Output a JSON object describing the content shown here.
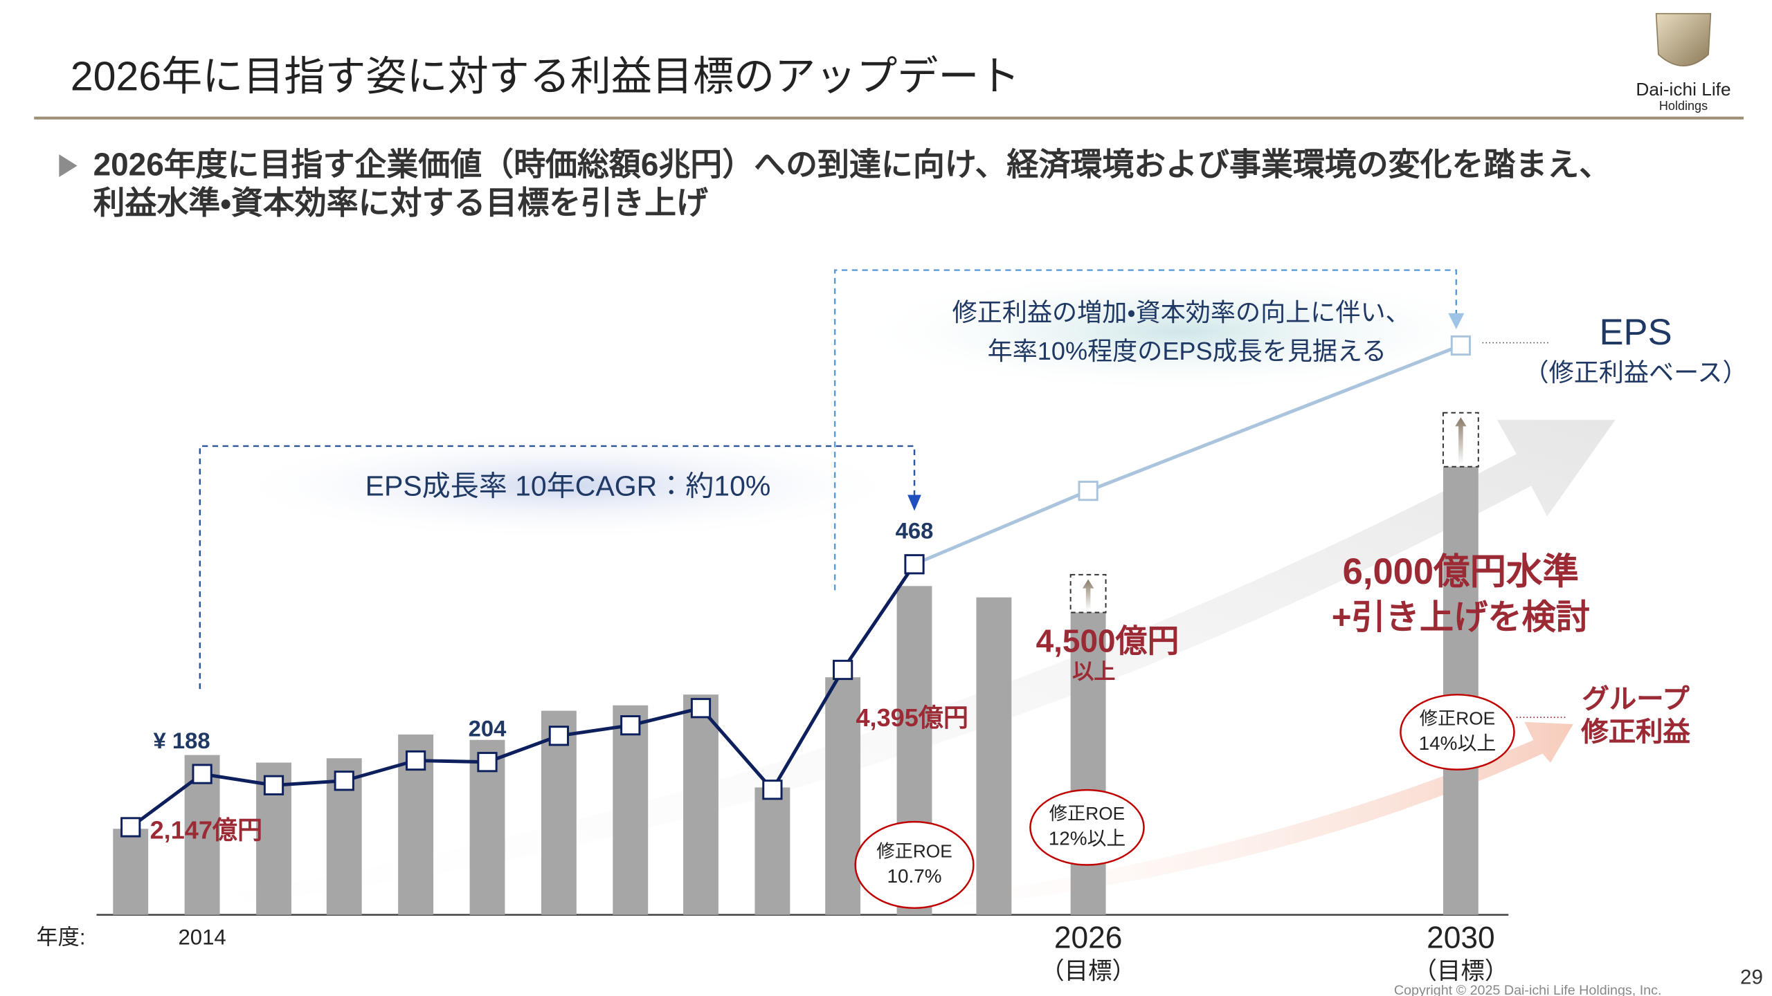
{
  "header": {
    "title": "2026年に目指す姿に対する利益目標のアップデート",
    "logo": [
      "Dai-ichi Life",
      "Holdings"
    ]
  },
  "bullet": [
    "2026年度に目指す企業価値（時価総額6兆円）への到達に向け、経済環境および事業環境の変化を踏まえ、",
    "利益水準・資本効率に対する目標を引き上げ"
  ],
  "chart_data": {
    "type": "combo",
    "x_label": "年度:",
    "categories": [
      null,
      "2014",
      null,
      null,
      null,
      null,
      null,
      null,
      null,
      null,
      null,
      null,
      null,
      "2026",
      "2030"
    ],
    "category_notes": [
      null,
      null,
      null,
      null,
      null,
      null,
      null,
      null,
      null,
      null,
      null,
      null,
      null,
      "（目標）",
      "（目標）"
    ],
    "ylim": [
      1350,
      6900
    ],
    "y2lim": [
      0,
      800
    ],
    "series": [
      {
        "name": "グループ修正利益",
        "color": "#a6a6a6",
        "values": [
          2147,
          2830,
          2760,
          2800,
          3020,
          2970,
          3240,
          3290,
          3390,
          2530,
          3550,
          4395,
          4290,
          4150,
          5500
        ],
        "value_labels": [
          "2,147億円",
          null,
          null,
          null,
          null,
          null,
          null,
          null,
          null,
          null,
          null,
          "4,395億円",
          null,
          null,
          null
        ]
      },
      {
        "name": "EPS",
        "color": "#0d1f5c",
        "axis": "y2",
        "values": [
          117,
          188,
          173,
          179,
          206,
          204,
          239,
          253,
          276,
          167,
          327,
          468,
          null,
          null,
          null
        ],
        "value_labels": [
          null,
          "¥ 188",
          null,
          null,
          null,
          "204",
          null,
          null,
          null,
          null,
          null,
          "468",
          null,
          null,
          null
        ]
      },
      {
        "color": "#a9c4dc",
        "axis": "y2",
        "connect_nulls": true,
        "values": [
          null,
          null,
          null,
          null,
          null,
          null,
          null,
          null,
          null,
          null,
          null,
          468,
          null,
          566,
          760
        ]
      }
    ],
    "targets": {
      "color": "#9b2a35",
      "values": [
        null,
        null,
        null,
        null,
        null,
        null,
        null,
        null,
        null,
        null,
        null,
        null,
        null,
        4500,
        6000
      ],
      "value_labels": [
        null,
        null,
        null,
        null,
        null,
        null,
        null,
        null,
        null,
        null,
        null,
        null,
        null,
        "4,500億円",
        "6,000億円水準"
      ],
      "notes": [
        null,
        null,
        null,
        null,
        null,
        null,
        null,
        null,
        null,
        null,
        null,
        null,
        null,
        "以上",
        "+引き上げを検討"
      ]
    },
    "roe": {
      "label": "修正ROE",
      "values": [
        null,
        null,
        null,
        null,
        null,
        null,
        null,
        null,
        null,
        null,
        null,
        10.7,
        null,
        12,
        14
      ],
      "value_labels": [
        null,
        null,
        null,
        null,
        null,
        null,
        null,
        null,
        null,
        null,
        null,
        "10.7%",
        null,
        "12%以上",
        "14%以上"
      ]
    },
    "eps_subtitle": "（修正利益ベース）",
    "annotations": [
      "EPS成長率 10年CAGR：約10%",
      "修正利益の増加・資本効率の向上に伴い、",
      "年率10%程度のEPS成長を見据える"
    ]
  },
  "footer": {
    "copyright": "Copyright © 2025 Dai-ichi Life Holdings, Inc.",
    "page": 29
  }
}
